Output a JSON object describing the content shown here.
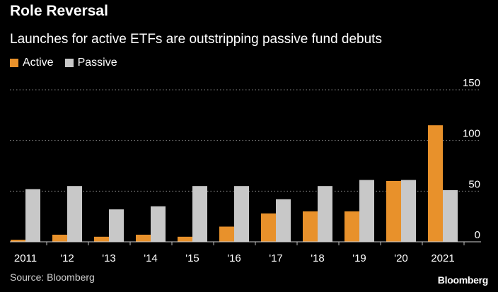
{
  "chart_data": {
    "type": "bar",
    "title": "Role Reversal",
    "subtitle": "Launches for active ETFs are outstripping passive fund debuts",
    "categories": [
      "2011",
      "'12",
      "'13",
      "'14",
      "'15",
      "'16",
      "'17",
      "'18",
      "'19",
      "'20",
      "2021"
    ],
    "series": [
      {
        "name": "Active",
        "color": "#E8912B",
        "values": [
          2,
          7,
          5,
          7,
          5,
          15,
          28,
          30,
          30,
          60,
          115
        ]
      },
      {
        "name": "Passive",
        "color": "#C8C8C8",
        "values": [
          52,
          55,
          32,
          35,
          55,
          55,
          42,
          55,
          61,
          61,
          51
        ]
      }
    ],
    "ylim": [
      0,
      150
    ],
    "yticks": [
      0,
      50,
      100,
      150
    ],
    "ytick_labels": [
      "0",
      "50",
      "100",
      "150"
    ],
    "y_axis_position": "right",
    "grid": true,
    "legend": "top-left",
    "xlabel": "",
    "ylabel": ""
  },
  "source": "Source: Bloomberg",
  "brand": "Bloomberg"
}
